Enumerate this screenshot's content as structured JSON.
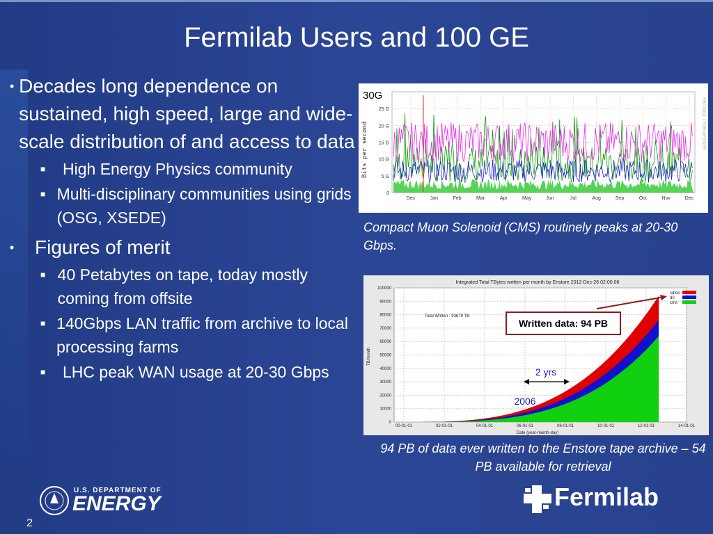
{
  "title": "Fermilab Users and 100 GE",
  "bullets": [
    {
      "text": "Decades long dependence on sustained, high speed, large and wide-scale distribution of and access to data",
      "sub": [
        "High Energy Physics community",
        "Multi-disciplinary communities using grids (OSG, XSEDE)"
      ]
    },
    {
      "text": "Figures of merit",
      "sub": [
        "40 Petabytes on tape, today mostly coming from offsite",
        "140Gbps LAN traffic from archive to local processing farms",
        "LHC peak WAN usage at 20-30 Gbps"
      ]
    }
  ],
  "chart1": {
    "badge": "30G",
    "ylabel": "Bits per second",
    "yticks": [
      "25 G",
      "20 G",
      "15 G",
      "10 G",
      "5 G",
      "0"
    ],
    "xticks": [
      "Dec",
      "Jan",
      "Feb",
      "Mar",
      "Apr",
      "May",
      "Jun",
      "Jul",
      "Aug",
      "Sep",
      "Oct",
      "Nov",
      "Dec"
    ],
    "side_label": "RRDTOOL / TOBI OETIKER",
    "caption": "Compact Muon Solenoid (CMS) routinely peaks at 20-30 Gbps."
  },
  "chart2": {
    "title": "Integrated Total TBytes written per month by Enstore 2012-Dec-26 02:00:06",
    "total_written": "Total Written : 93679 TB",
    "ylabel": "TB/month",
    "xlabel": "Date (year-month-day)",
    "yticks": [
      "100000",
      "90000",
      "80000",
      "70000",
      "60000",
      "50000",
      "40000",
      "30000",
      "20000",
      "10000",
      "0"
    ],
    "xticks": [
      "00-01-01",
      "02-01-01",
      "04-01-01",
      "06-01-01",
      "08-01-01",
      "10-01-01",
      "12-01-01",
      "14-01-01"
    ],
    "legend": [
      {
        "name": "cdfen",
        "color": "#e00000"
      },
      {
        "name": "d0",
        "color": "#1010d0"
      },
      {
        "name": "cms",
        "color": "#10d010"
      }
    ],
    "callout": "Written data: 94 PB",
    "span_label": "2 yrs",
    "year_label": "2006",
    "caption": "94 PB of data ever written to the Enstore tape archive – 54 PB available for retrieval"
  },
  "footer": {
    "doe_top": "U.S. DEPARTMENT OF",
    "doe_main": "ENERGY",
    "fermilab": "Fermilab",
    "page": "2"
  }
}
